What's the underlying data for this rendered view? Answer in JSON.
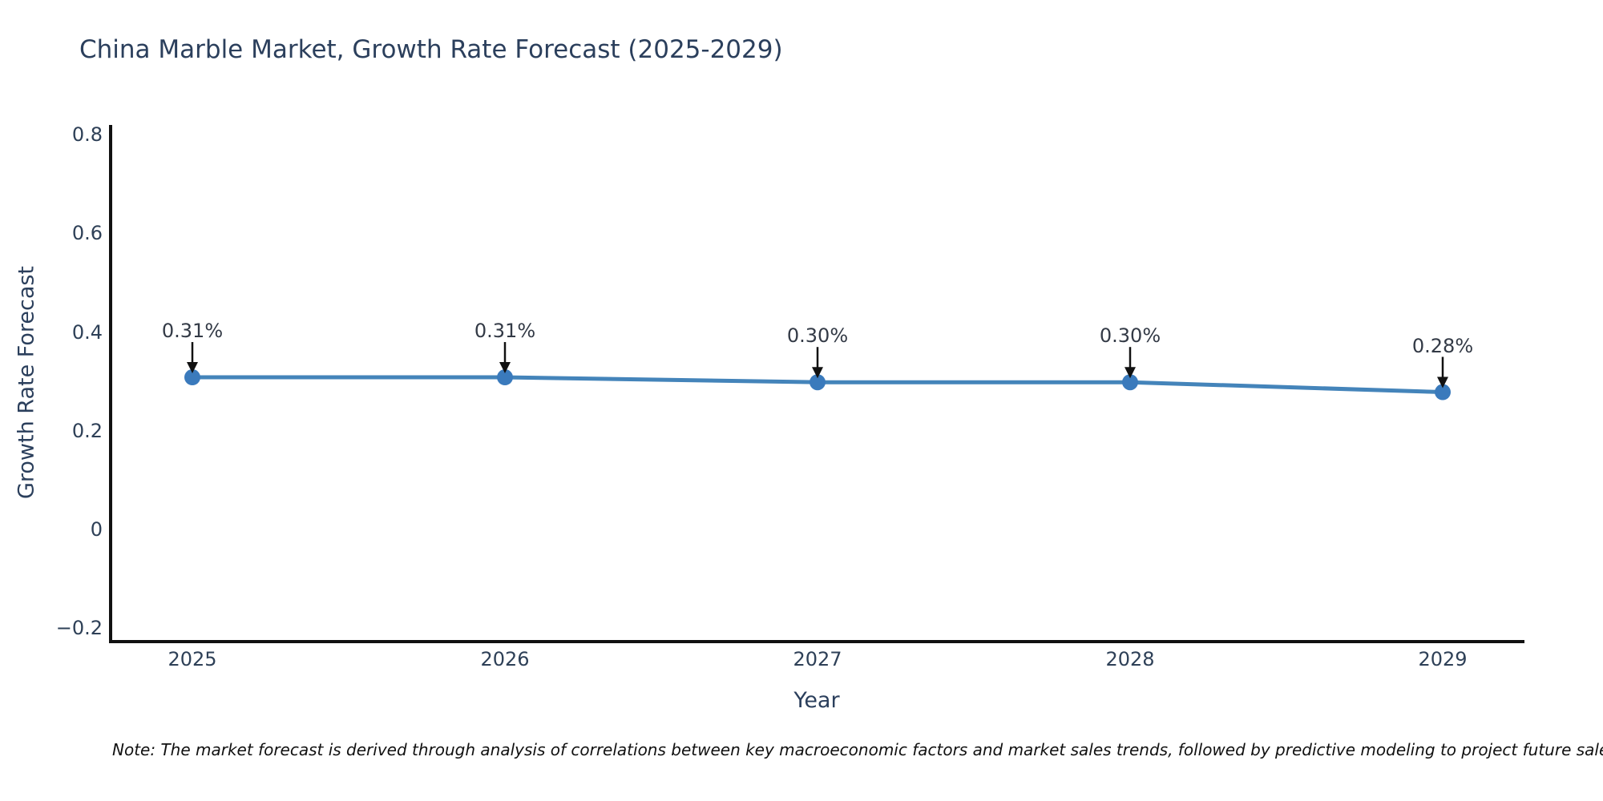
{
  "chart_data": {
    "type": "line",
    "title": "China Marble Market, Growth Rate Forecast (2025-2029)",
    "xlabel": "Year",
    "ylabel": "Growth Rate Forecast",
    "categories": [
      "2025",
      "2026",
      "2027",
      "2028",
      "2029"
    ],
    "series": [
      {
        "name": "Growth Rate Forecast",
        "values": [
          0.31,
          0.31,
          0.3,
          0.3,
          0.28
        ],
        "point_labels": [
          "0.31%",
          "0.31%",
          "0.30%",
          "0.30%",
          "0.28%"
        ]
      }
    ],
    "yticks": [
      {
        "value": 0.8,
        "label": "0.8"
      },
      {
        "value": 0.6,
        "label": "0.6"
      },
      {
        "value": 0.4,
        "label": "0.4"
      },
      {
        "value": 0.2,
        "label": "0.2"
      },
      {
        "value": 0.0,
        "label": "0"
      },
      {
        "value": -0.2,
        "label": "−0.2"
      }
    ],
    "ylim": [
      -0.226,
      0.818
    ],
    "grid": false,
    "legend": "none",
    "line_color": "#4484ba",
    "marker_color": "#3a7abc",
    "annotation_arrow_color": "#111111",
    "note": "Note: The market forecast is derived through analysis of correlations between key macroeconomic factors and market sales trends, followed by predictive modeling to project future sales"
  }
}
